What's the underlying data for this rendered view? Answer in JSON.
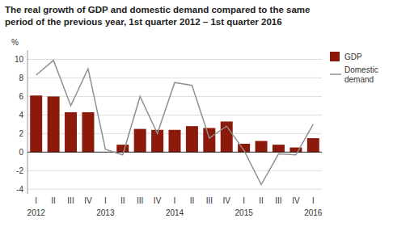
{
  "chart_data": {
    "type": "bar",
    "title": "The real growth of GDP and domestic demand compared to the same\nperiod of the previous year, 1st quarter 2012 – 1st quarter 2016",
    "y_label": "%",
    "categories": [
      "I",
      "II",
      "III",
      "IV",
      "I",
      "II",
      "III",
      "IV",
      "I",
      "II",
      "III",
      "IV",
      "I",
      "II",
      "III",
      "IV",
      "I"
    ],
    "annotations": [
      {
        "text": "2012",
        "x": 0
      },
      {
        "text": "2013",
        "x": 4
      },
      {
        "text": "2014",
        "x": 8
      },
      {
        "text": "2015",
        "x": 12
      },
      {
        "text": "2016",
        "x": 16
      }
    ],
    "series": [
      {
        "name": "GDP",
        "type": "bar",
        "color": "#8B1A0A",
        "values": [
          6.1,
          6.0,
          4.3,
          4.3,
          0.0,
          0.8,
          2.5,
          2.4,
          2.4,
          2.8,
          2.6,
          3.3,
          0.9,
          1.2,
          0.8,
          0.5,
          1.5
        ]
      },
      {
        "name": "Domestic\ndemand",
        "type": "line",
        "color": "#909090",
        "values": [
          8.3,
          9.9,
          5.0,
          9.0,
          0.3,
          -0.3,
          6.0,
          2.0,
          7.5,
          7.2,
          1.5,
          2.8,
          0.2,
          -3.5,
          -0.2,
          -0.3,
          3.0
        ]
      }
    ],
    "ylim": [
      -4.5,
      11
    ],
    "yticks": [
      -4,
      -2,
      0,
      2,
      4,
      6,
      8,
      10
    ],
    "grid": true
  }
}
